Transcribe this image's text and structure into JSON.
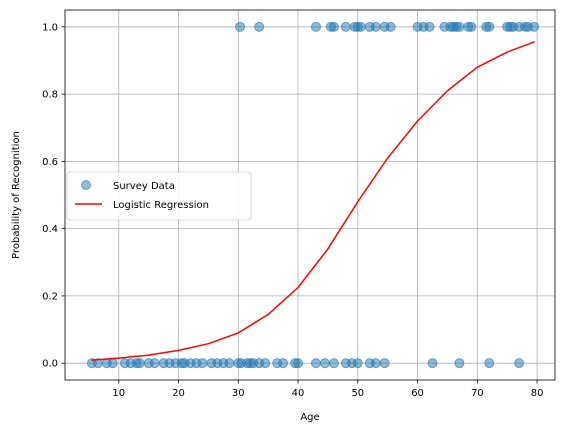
{
  "chart_data": {
    "type": "scatter",
    "xlabel": "Age",
    "ylabel": "Probability of Recognition",
    "xlim": [
      1,
      83
    ],
    "ylim": [
      -0.05,
      1.05
    ],
    "xticks": [
      10,
      20,
      30,
      40,
      50,
      60,
      70,
      80
    ],
    "yticks": [
      0.0,
      0.2,
      0.4,
      0.6,
      0.8,
      1.0
    ],
    "xtick_labels": [
      "10",
      "20",
      "30",
      "40",
      "50",
      "60",
      "70",
      "80"
    ],
    "ytick_labels": [
      "0.0",
      "0.2",
      "0.4",
      "0.6",
      "0.8",
      "1.0"
    ],
    "grid": true,
    "legend_position": "center-left",
    "legend": [
      "Survey Data",
      "Logistic Regression"
    ],
    "series": [
      {
        "name": "Survey Data",
        "kind": "scatter",
        "color": "#1f77b4",
        "points": [
          [
            5.5,
            0
          ],
          [
            6.5,
            0
          ],
          [
            8,
            0
          ],
          [
            9,
            0
          ],
          [
            11,
            0
          ],
          [
            12,
            0
          ],
          [
            13,
            0
          ],
          [
            13.5,
            0
          ],
          [
            15,
            0
          ],
          [
            16,
            0
          ],
          [
            17.5,
            0
          ],
          [
            18.5,
            0
          ],
          [
            19.5,
            0
          ],
          [
            20.5,
            0
          ],
          [
            21,
            0
          ],
          [
            22,
            0
          ],
          [
            23,
            0
          ],
          [
            24,
            0
          ],
          [
            25.5,
            0
          ],
          [
            26.5,
            0
          ],
          [
            27.5,
            0
          ],
          [
            28.5,
            0
          ],
          [
            30,
            0
          ],
          [
            30.5,
            0
          ],
          [
            31.5,
            0
          ],
          [
            32,
            0
          ],
          [
            32.5,
            0
          ],
          [
            33.5,
            0
          ],
          [
            34.5,
            0
          ],
          [
            36.5,
            0
          ],
          [
            37.5,
            0
          ],
          [
            39.5,
            0
          ],
          [
            40,
            0
          ],
          [
            43,
            0
          ],
          [
            44.5,
            0
          ],
          [
            46,
            0
          ],
          [
            48,
            0
          ],
          [
            49,
            0
          ],
          [
            50,
            0
          ],
          [
            52,
            0
          ],
          [
            53,
            0
          ],
          [
            54.5,
            0
          ],
          [
            62.5,
            0
          ],
          [
            67,
            0
          ],
          [
            72,
            0
          ],
          [
            77,
            0
          ],
          [
            30.3,
            1
          ],
          [
            33.5,
            1
          ],
          [
            43,
            1
          ],
          [
            45.5,
            1
          ],
          [
            46,
            1
          ],
          [
            48,
            1
          ],
          [
            49.5,
            1
          ],
          [
            50,
            1
          ],
          [
            50.5,
            1
          ],
          [
            52,
            1
          ],
          [
            53,
            1
          ],
          [
            54.5,
            1
          ],
          [
            55.5,
            1
          ],
          [
            60,
            1
          ],
          [
            61,
            1
          ],
          [
            62,
            1
          ],
          [
            64.5,
            1
          ],
          [
            65.5,
            1
          ],
          [
            66,
            1
          ],
          [
            66.5,
            1
          ],
          [
            67,
            1
          ],
          [
            68.5,
            1
          ],
          [
            69,
            1
          ],
          [
            71.5,
            1
          ],
          [
            72,
            1
          ],
          [
            75,
            1
          ],
          [
            75.5,
            1
          ],
          [
            76,
            1
          ],
          [
            77,
            1
          ],
          [
            78,
            1
          ],
          [
            78.5,
            1
          ],
          [
            79.5,
            1
          ]
        ]
      },
      {
        "name": "Logistic Regression",
        "kind": "line",
        "color": "#ff0000",
        "x": [
          5.5,
          10,
          15,
          20,
          25,
          30,
          35,
          40,
          45,
          50,
          55,
          60,
          65,
          70,
          75,
          79.5
        ],
        "y": [
          0.009,
          0.015,
          0.024,
          0.038,
          0.058,
          0.09,
          0.145,
          0.225,
          0.34,
          0.48,
          0.61,
          0.72,
          0.81,
          0.88,
          0.925,
          0.955
        ]
      }
    ]
  }
}
